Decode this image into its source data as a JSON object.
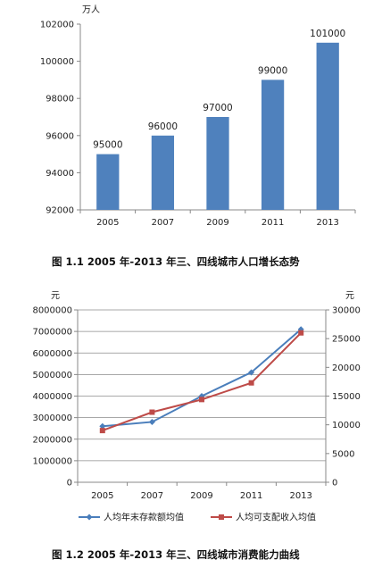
{
  "chart_data": [
    {
      "type": "bar",
      "ylabel": "万人",
      "categories": [
        "2005",
        "2007",
        "2009",
        "2011",
        "2013"
      ],
      "values": [
        95000,
        96000,
        97000,
        99000,
        101000
      ],
      "data_labels": [
        "95000",
        "96000",
        "97000",
        "99000",
        "101000"
      ],
      "ylim": [
        92000,
        102000
      ],
      "yticks": [
        "92000",
        "94000",
        "96000",
        "98000",
        "100000",
        "102000"
      ],
      "grid": false,
      "color": "#4F81BD",
      "caption": "图 1.1   2005 年-2013 年三、四线城市人口增长态势"
    },
    {
      "type": "line",
      "ylabel_left": "元",
      "ylabel_right": "元",
      "categories": [
        "2005",
        "2007",
        "2009",
        "2011",
        "2013"
      ],
      "ylim_left": [
        0,
        8000000
      ],
      "yticks_left": [
        "0",
        "1000000",
        "2000000",
        "3000000",
        "4000000",
        "5000000",
        "6000000",
        "7000000",
        "8000000"
      ],
      "ylim_right": [
        0,
        30000
      ],
      "yticks_right": [
        "0",
        "5000",
        "10000",
        "15000",
        "20000",
        "25000",
        "30000"
      ],
      "grid": true,
      "legend_position": "bottom",
      "series": [
        {
          "name": "人均年末存款额均值",
          "axis": "left",
          "color": "#4A7EBB",
          "marker": "diamond",
          "values": [
            2600000,
            2800000,
            4000000,
            5100000,
            7100000
          ]
        },
        {
          "name": "人均可支配收入均值",
          "axis": "right",
          "color": "#BE4B48",
          "marker": "square",
          "values": [
            9000,
            12200,
            14400,
            17300,
            26000
          ]
        }
      ],
      "caption": "图 1.2   2005 年-2013 年三、四线城市消费能力曲线"
    }
  ]
}
